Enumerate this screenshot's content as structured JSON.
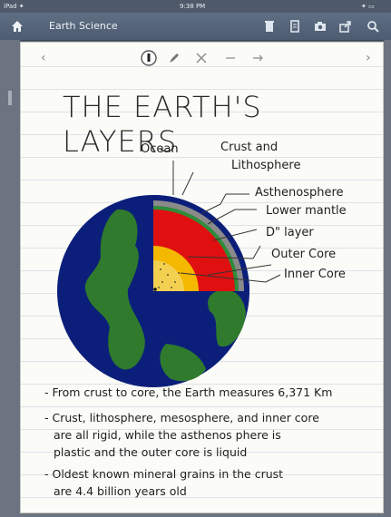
{
  "status_bar": {
    "left": "iPad ✦",
    "center": "9:38 PM",
    "right": "✦ ▭"
  },
  "nav": {
    "title": "Earth Science"
  },
  "note": {
    "title": "THE EARTH'S LAYERS",
    "labels": {
      "ocean": "Ocean",
      "crust_line1": "Crust and",
      "crust_line2": "Lithosphere",
      "asthenosphere": "Asthenosphere",
      "lower_mantle": "Lower mantle",
      "d_layer": "D\" layer",
      "outer_core": "Outer Core",
      "inner_core": "Inner Core"
    },
    "bullets": [
      {
        "lines": [
          "- From crust to core, the Earth measures 6,371 Km"
        ]
      },
      {
        "lines": [
          "- Crust, lithosphere, mesosphere, and inner core",
          "are all rigid, while the asthenos phere is",
          "plastic and the outer core is liquid"
        ]
      },
      {
        "lines": [
          "- Oldest known mineral grains in the crust",
          "are 4.4 billion years old"
        ]
      }
    ]
  },
  "colors": {
    "ocean": "#0b1f7a",
    "land": "#2f7a2c",
    "crust": "#8a8a8a",
    "mantle": "#e01010",
    "outer_core": "#f4b800",
    "inner_core": "#f4d050",
    "asthenosphere": "#2e8c3a"
  },
  "icons": [
    "home-icon",
    "trash-icon",
    "pages-icon",
    "camera-icon",
    "share-icon",
    "search-icon",
    "pen-tool-icon",
    "pencil-icon",
    "scissors-icon",
    "undo-icon",
    "redo-icon"
  ]
}
